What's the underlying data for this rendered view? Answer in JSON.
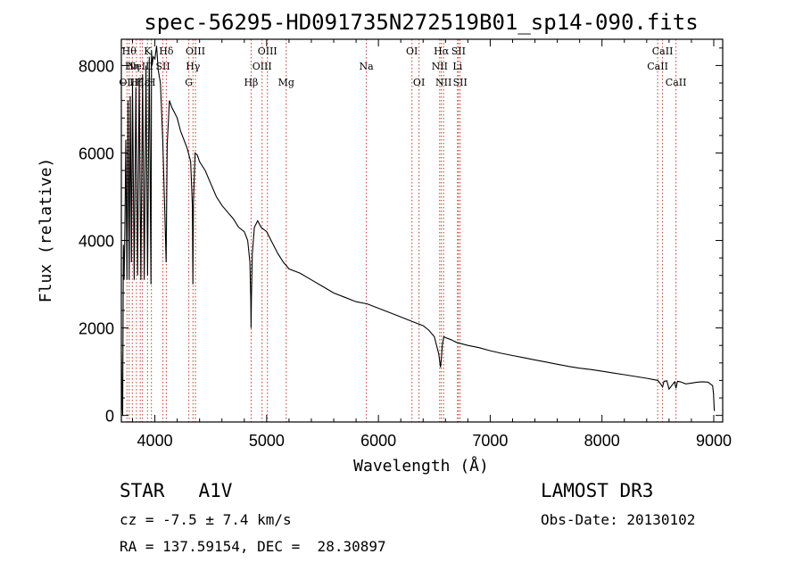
{
  "chart_data": {
    "type": "line",
    "title": "spec-56295-HD091735N272519B01_sp14-090.fits",
    "xlabel": "Wavelength (Å)",
    "ylabel": "Flux (relative)",
    "xlim": [
      3700,
      9080
    ],
    "ylim": [
      -150,
      8600
    ],
    "x_ticks": [
      4000,
      5000,
      6000,
      7000,
      8000,
      9000
    ],
    "x_tick_labels": [
      "4000",
      "5000",
      "6000",
      "7000",
      "8000",
      "9000"
    ],
    "y_ticks": [
      0,
      2000,
      4000,
      6000,
      8000
    ],
    "y_tick_labels": [
      "0",
      "2000",
      "4000",
      "6000",
      "8000"
    ],
    "series": [
      {
        "name": "spectrum",
        "x": [
          3700,
          3708,
          3712,
          3718,
          3725,
          3732,
          3740,
          3750,
          3760,
          3770,
          3780,
          3790,
          3800,
          3815,
          3830,
          3845,
          3860,
          3875,
          3890,
          3905,
          3920,
          3935,
          3950,
          3965,
          3970,
          3975,
          3985,
          4000,
          4015,
          4030,
          4050,
          4070,
          4090,
          4101,
          4110,
          4130,
          4150,
          4180,
          4200,
          4230,
          4260,
          4290,
          4320,
          4335,
          4340,
          4345,
          4360,
          4380,
          4400,
          4450,
          4500,
          4550,
          4600,
          4650,
          4700,
          4750,
          4800,
          4830,
          4850,
          4858,
          4861,
          4864,
          4872,
          4890,
          4920,
          4950,
          5000,
          5050,
          5100,
          5150,
          5200,
          5300,
          5400,
          5500,
          5600,
          5700,
          5800,
          5900,
          6000,
          6100,
          6200,
          6300,
          6400,
          6450,
          6500,
          6540,
          6555,
          6563,
          6571,
          6585,
          6600,
          6650,
          6700,
          6800,
          6900,
          7000,
          7100,
          7200,
          7300,
          7400,
          7500,
          7600,
          7700,
          7800,
          7900,
          8000,
          8100,
          8200,
          8300,
          8400,
          8500,
          8530,
          8542,
          8555,
          8580,
          8600,
          8650,
          8662,
          8675,
          8700,
          8750,
          8800,
          8850,
          8900,
          8950,
          8990,
          8998,
          9005
        ],
        "y": [
          1450,
          200,
          0,
          3900,
          3100,
          4300,
          6300,
          3100,
          7200,
          3100,
          7300,
          3500,
          7600,
          3100,
          7500,
          3200,
          7700,
          3100,
          7800,
          3100,
          8000,
          3200,
          8200,
          3000,
          8350,
          8000,
          8200,
          8150,
          8450,
          7900,
          7600,
          6300,
          4500,
          3500,
          6200,
          7200,
          7050,
          6900,
          6800,
          6500,
          6300,
          6100,
          5800,
          4800,
          3000,
          4900,
          6000,
          5950,
          5800,
          5600,
          5300,
          5000,
          4800,
          4650,
          4500,
          4300,
          4200,
          4000,
          3500,
          2600,
          2000,
          2700,
          3700,
          4300,
          4450,
          4300,
          4200,
          3950,
          3700,
          3500,
          3350,
          3250,
          3100,
          2950,
          2800,
          2700,
          2600,
          2550,
          2450,
          2350,
          2250,
          2150,
          2050,
          1950,
          1800,
          1400,
          1100,
          1300,
          1600,
          1800,
          1780,
          1730,
          1670,
          1600,
          1550,
          1480,
          1420,
          1370,
          1320,
          1270,
          1220,
          1170,
          1120,
          1080,
          1050,
          1010,
          970,
          930,
          890,
          850,
          800,
          700,
          650,
          780,
          790,
          600,
          770,
          620,
          780,
          770,
          720,
          740,
          760,
          770,
          760,
          680,
          500,
          100
        ]
      }
    ],
    "line_labels": [
      {
        "wavelength": 3750,
        "label": "OII",
        "row": 3
      },
      {
        "wavelength": 3770,
        "label": "Hθ",
        "row": 1
      },
      {
        "wavelength": 3798,
        "label": "Hη",
        "row": 2
      },
      {
        "wavelength": 3835,
        "label": "Hζ",
        "row": 3
      },
      {
        "wavelength": 3869,
        "label": "NeIII",
        "row": 2
      },
      {
        "wavelength": 3889,
        "label": "Hε",
        "row": 3
      },
      {
        "wavelength": 3934,
        "label": "K",
        "row": 1
      },
      {
        "wavelength": 3969,
        "label": "H",
        "row": 3
      },
      {
        "wavelength": 4072,
        "label": "SII",
        "row": 2
      },
      {
        "wavelength": 4102,
        "label": "Hδ",
        "row": 1
      },
      {
        "wavelength": 4304,
        "label": "G",
        "row": 3
      },
      {
        "wavelength": 4341,
        "label": "Hγ",
        "row": 2
      },
      {
        "wavelength": 4363,
        "label": "OIII",
        "row": 1
      },
      {
        "wavelength": 4861,
        "label": "Hβ",
        "row": 3
      },
      {
        "wavelength": 4959,
        "label": "OIII",
        "row": 2
      },
      {
        "wavelength": 5007,
        "label": "OIII",
        "row": 1
      },
      {
        "wavelength": 5175,
        "label": "Mg",
        "row": 3
      },
      {
        "wavelength": 5892,
        "label": "Na",
        "row": 2
      },
      {
        "wavelength": 6300,
        "label": "OI",
        "row": 1
      },
      {
        "wavelength": 6363,
        "label": "OI",
        "row": 3
      },
      {
        "wavelength": 6548,
        "label": "NII",
        "row": 2
      },
      {
        "wavelength": 6563,
        "label": "Hα",
        "row": 1
      },
      {
        "wavelength": 6583,
        "label": "NII",
        "row": 3
      },
      {
        "wavelength": 6708,
        "label": "Li",
        "row": 2
      },
      {
        "wavelength": 6716,
        "label": "SII",
        "row": 1
      },
      {
        "wavelength": 6731,
        "label": "SII",
        "row": 3
      },
      {
        "wavelength": 8498,
        "label": "CaII",
        "row": 2
      },
      {
        "wavelength": 8542,
        "label": "CaII",
        "row": 1
      },
      {
        "wavelength": 8662,
        "label": "CaII",
        "row": 3
      }
    ]
  },
  "info": {
    "class_line": "STAR   A1V",
    "survey": "LAMOST DR3",
    "cz_line": "cz = -7.5 ± 7.4 km/s",
    "obs_date": "Obs-Date: 20130102",
    "radec_line": "RA = 137.59154, DEC =  28.30897"
  },
  "colors": {
    "line_marker": "#c0392b",
    "spectrum": "#000000",
    "axes": "#000000"
  }
}
